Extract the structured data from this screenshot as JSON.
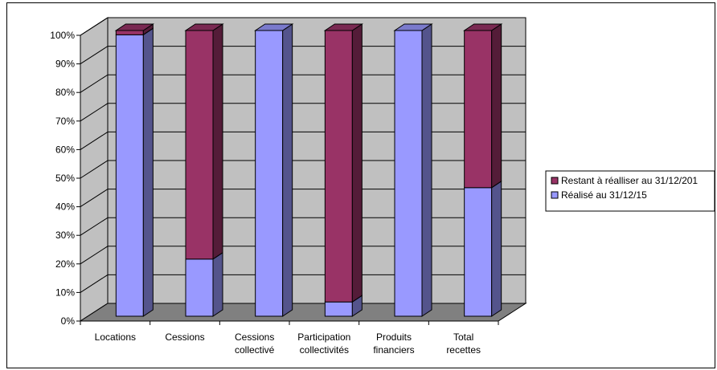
{
  "chart_data": {
    "type": "bar",
    "stacked": true,
    "percent": true,
    "three_d": true,
    "categories": [
      [
        "Locations"
      ],
      [
        "Cessions"
      ],
      [
        "Cessions",
        "collectivé"
      ],
      [
        "Participation",
        "collectivités"
      ],
      [
        "Produits",
        "financiers"
      ],
      [
        "Total",
        "recettes"
      ]
    ],
    "series": [
      {
        "name": "Réalisé au 31/12/15",
        "values": [
          98.5,
          20,
          100,
          5,
          100,
          45
        ],
        "color": "#9999ff"
      },
      {
        "name": "Restant à réalliser au 31/12/201",
        "values": [
          1.5,
          80,
          0,
          95,
          0,
          55
        ],
        "color": "#993366"
      }
    ],
    "ylim": [
      0,
      100
    ],
    "yticks": [
      "0%",
      "10%",
      "20%",
      "30%",
      "40%",
      "50%",
      "60%",
      "70%",
      "80%",
      "90%",
      "100%"
    ],
    "grid": true,
    "legend": "right",
    "wall_color": "#c0c0c0",
    "floor_color": "#808080"
  }
}
